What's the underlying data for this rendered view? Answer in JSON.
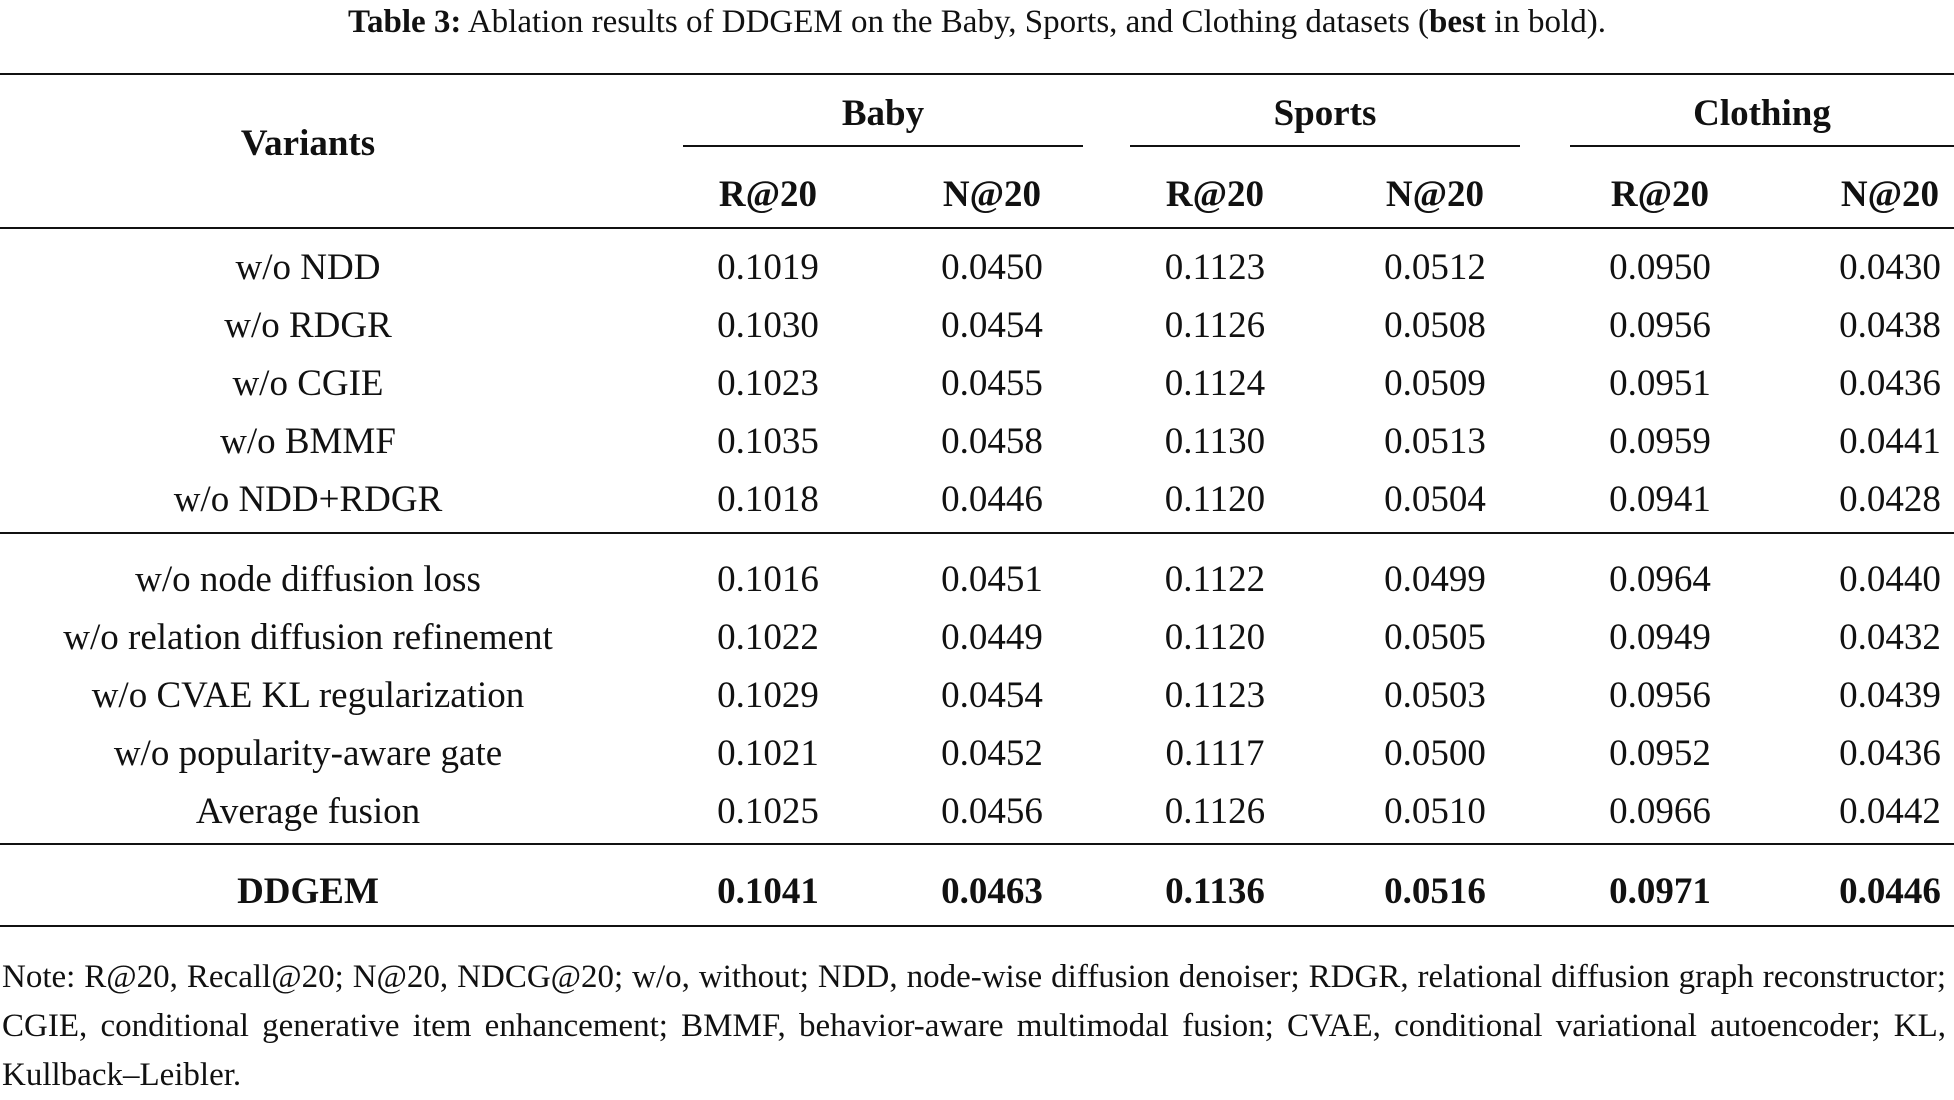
{
  "caption": {
    "label": "Table 3:",
    "text_before": " Ablation results of DDGEM on the Baby, Sports, and Clothing datasets (",
    "bold_word": "best",
    "text_after": " in bold)."
  },
  "table": {
    "variants_header": "Variants",
    "groups": [
      "Baby",
      "Sports",
      "Clothing"
    ],
    "metrics": [
      "R@20",
      "N@20",
      "R@20",
      "N@20",
      "R@20",
      "N@20"
    ],
    "block1": [
      {
        "name": "w/o NDD",
        "values": [
          "0.1019",
          "0.0450",
          "0.1123",
          "0.0512",
          "0.0950",
          "0.0430"
        ]
      },
      {
        "name": "w/o RDGR",
        "values": [
          "0.1030",
          "0.0454",
          "0.1126",
          "0.0508",
          "0.0956",
          "0.0438"
        ]
      },
      {
        "name": "w/o CGIE",
        "values": [
          "0.1023",
          "0.0455",
          "0.1124",
          "0.0509",
          "0.0951",
          "0.0436"
        ]
      },
      {
        "name": "w/o BMMF",
        "values": [
          "0.1035",
          "0.0458",
          "0.1130",
          "0.0513",
          "0.0959",
          "0.0441"
        ]
      },
      {
        "name": "w/o NDD+RDGR",
        "values": [
          "0.1018",
          "0.0446",
          "0.1120",
          "0.0504",
          "0.0941",
          "0.0428"
        ]
      }
    ],
    "block2": [
      {
        "name": "w/o node diffusion loss",
        "values": [
          "0.1016",
          "0.0451",
          "0.1122",
          "0.0499",
          "0.0964",
          "0.0440"
        ]
      },
      {
        "name": "w/o relation diffusion refinement",
        "values": [
          "0.1022",
          "0.0449",
          "0.1120",
          "0.0505",
          "0.0949",
          "0.0432"
        ]
      },
      {
        "name": "w/o CVAE KL regularization",
        "values": [
          "0.1029",
          "0.0454",
          "0.1123",
          "0.0503",
          "0.0956",
          "0.0439"
        ]
      },
      {
        "name": "w/o popularity-aware gate",
        "values": [
          "0.1021",
          "0.0452",
          "0.1117",
          "0.0500",
          "0.0952",
          "0.0436"
        ]
      },
      {
        "name": "Average fusion",
        "values": [
          "0.1025",
          "0.0456",
          "0.1126",
          "0.0510",
          "0.0966",
          "0.0442"
        ]
      }
    ],
    "final": {
      "name": "DDGEM",
      "values": [
        "0.1041",
        "0.0463",
        "0.1136",
        "0.0516",
        "0.0971",
        "0.0446"
      ]
    }
  },
  "note": "Note: R@20, Recall@20; N@20, NDCG@20; w/o, without; NDD, node-wise diffusion denoiser; RDGR, relational diffusion graph reconstructor; CGIE, conditional generative item enhancement; BMMF, behavior-aware multimodal fusion; CVAE, conditional variational autoencoder; KL, Kullback–Leibler."
}
